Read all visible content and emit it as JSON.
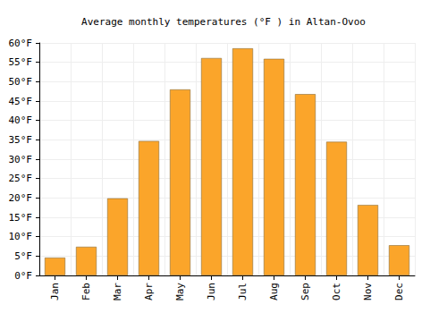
{
  "chart_data": {
    "type": "bar",
    "title": "Average monthly temperatures (°F ) in Altan-Ovoo",
    "categories": [
      "Jan",
      "Feb",
      "Mar",
      "Apr",
      "May",
      "Jun",
      "Jul",
      "Aug",
      "Sep",
      "Oct",
      "Nov",
      "Dec"
    ],
    "values": [
      4.6,
      7.4,
      19.9,
      34.7,
      48.0,
      56.1,
      58.6,
      55.9,
      46.8,
      34.5,
      18.2,
      7.8
    ],
    "color": "#fba52a",
    "ylim": [
      0,
      60
    ],
    "yticks": [
      {
        "value": 0,
        "label": "0°F"
      },
      {
        "value": 5,
        "label": "5°F"
      },
      {
        "value": 10,
        "label": "10°F"
      },
      {
        "value": 15,
        "label": "15°F"
      },
      {
        "value": 20,
        "label": "20°F"
      },
      {
        "value": 25,
        "label": "25°F"
      },
      {
        "value": 30,
        "label": "30°F"
      },
      {
        "value": 35,
        "label": "35°F"
      },
      {
        "value": 40,
        "label": "40°F"
      },
      {
        "value": 45,
        "label": "45°F"
      },
      {
        "value": 50,
        "label": "50°F"
      },
      {
        "value": 55,
        "label": "55°F"
      },
      {
        "value": 60,
        "label": "60°F"
      }
    ],
    "grid": true
  }
}
